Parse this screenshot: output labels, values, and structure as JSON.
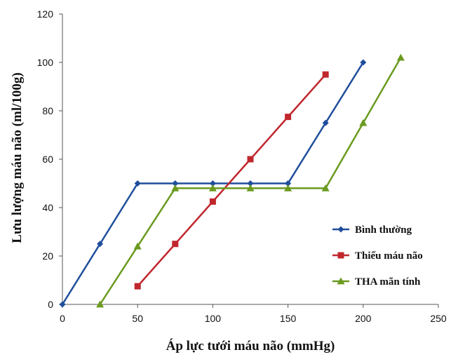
{
  "chart_data": {
    "type": "line",
    "title": "",
    "xlabel": "Áp lực tưới máu não (mmHg)",
    "ylabel": "Lưu lượng máu não (ml/100g)",
    "xlim": [
      0,
      250
    ],
    "ylim": [
      0,
      120
    ],
    "xticks": [
      "0",
      "50",
      "100",
      "150",
      "200",
      "250"
    ],
    "yticks": [
      "0",
      "20",
      "40",
      "60",
      "80",
      "100",
      "120"
    ],
    "grid": false,
    "legend_position": "right",
    "series": [
      {
        "name": "Bình thường",
        "color": "#1f4e9c",
        "marker": "diamond",
        "x": [
          0,
          25,
          50,
          75,
          100,
          125,
          150,
          175,
          200
        ],
        "y": [
          0,
          25,
          50,
          50,
          50,
          50,
          50,
          75,
          100
        ]
      },
      {
        "name": "Thiếu máu não",
        "color": "#c0272d",
        "marker": "square",
        "x": [
          50,
          75,
          100,
          125,
          150,
          175
        ],
        "y": [
          7.5,
          25,
          42.5,
          60,
          77.5,
          95
        ]
      },
      {
        "name": "THA mãn tính",
        "color": "#6a9a1f",
        "marker": "triangle",
        "x": [
          25,
          50,
          75,
          100,
          125,
          150,
          175,
          200,
          225
        ],
        "y": [
          0,
          24,
          48,
          48,
          48,
          48,
          48,
          75,
          102
        ]
      }
    ]
  }
}
